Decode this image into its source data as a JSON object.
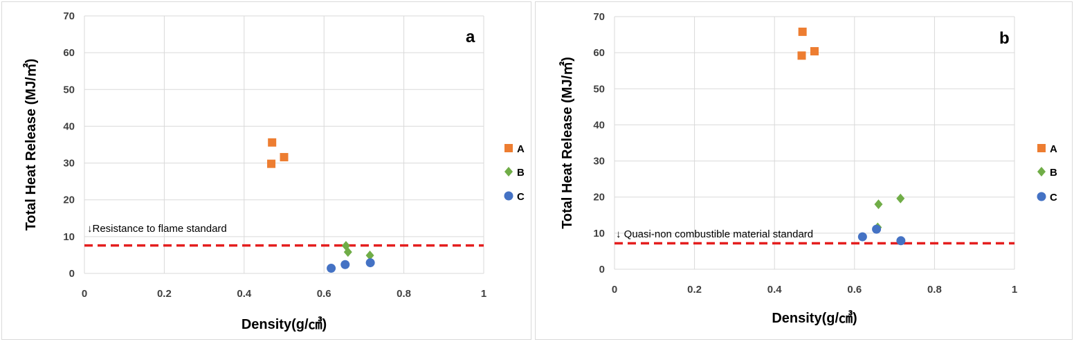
{
  "colors": {
    "A": "#ED7D31",
    "B": "#70AD47",
    "C": "#4472C4",
    "standard_line": "#E41E1E",
    "grid": "#D9D9D9"
  },
  "chart_data": [
    {
      "type": "scatter",
      "panel_label": "a",
      "xlabel": "Density(g/㎤)",
      "ylabel": "Total Heat Release (MJ/㎡)",
      "xlim": [
        0,
        1
      ],
      "ylim": [
        0,
        70
      ],
      "x_ticks": [
        "0",
        "0.2",
        "0.4",
        "0.6",
        "0.8",
        "1"
      ],
      "y_ticks": [
        "0",
        "10",
        "20",
        "30",
        "40",
        "50",
        "60",
        "70"
      ],
      "grid": true,
      "legend_position": "right",
      "series": [
        {
          "name": "A",
          "marker": "square",
          "points": [
            {
              "x": 0.47,
              "y": 35.6
            },
            {
              "x": 0.468,
              "y": 29.8
            },
            {
              "x": 0.5,
              "y": 31.6
            }
          ]
        },
        {
          "name": "B",
          "marker": "diamond",
          "points": [
            {
              "x": 0.655,
              "y": 7.5
            },
            {
              "x": 0.66,
              "y": 5.8
            },
            {
              "x": 0.715,
              "y": 4.9
            }
          ]
        },
        {
          "name": "C",
          "marker": "circle",
          "points": [
            {
              "x": 0.618,
              "y": 1.4
            },
            {
              "x": 0.653,
              "y": 2.4
            },
            {
              "x": 0.716,
              "y": 2.9
            }
          ]
        }
      ],
      "reference_line": {
        "y": 7.6,
        "label": "↓Resistance to flame standard"
      }
    },
    {
      "type": "scatter",
      "panel_label": "b",
      "xlabel": "Density(g/㎤)",
      "ylabel": "Total Heat Release (MJ/㎡)",
      "xlim": [
        0,
        1
      ],
      "ylim": [
        0,
        70
      ],
      "x_ticks": [
        "0",
        "0.2",
        "0.4",
        "0.6",
        "0.8",
        "1"
      ],
      "y_ticks": [
        "0",
        "10",
        "20",
        "30",
        "40",
        "50",
        "60",
        "70"
      ],
      "grid": true,
      "legend_position": "right",
      "series": [
        {
          "name": "A",
          "marker": "square",
          "points": [
            {
              "x": 0.47,
              "y": 65.8
            },
            {
              "x": 0.468,
              "y": 59.2
            },
            {
              "x": 0.5,
              "y": 60.4
            }
          ]
        },
        {
          "name": "B",
          "marker": "diamond",
          "points": [
            {
              "x": 0.66,
              "y": 18.0
            },
            {
              "x": 0.715,
              "y": 19.6
            },
            {
              "x": 0.658,
              "y": 11.6
            }
          ]
        },
        {
          "name": "C",
          "marker": "circle",
          "points": [
            {
              "x": 0.62,
              "y": 9.0
            },
            {
              "x": 0.655,
              "y": 11.1
            },
            {
              "x": 0.716,
              "y": 7.9
            }
          ]
        }
      ],
      "reference_line": {
        "y": 7.2,
        "label": "↓ Quasi-non combustible material standard"
      }
    }
  ]
}
